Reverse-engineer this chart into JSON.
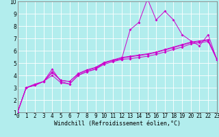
{
  "xlabel": "Windchill (Refroidissement éolien,°C)",
  "xlim": [
    0,
    23
  ],
  "ylim": [
    1,
    10
  ],
  "xticks": [
    0,
    1,
    2,
    3,
    4,
    5,
    6,
    7,
    8,
    9,
    10,
    11,
    12,
    13,
    14,
    15,
    16,
    17,
    18,
    19,
    20,
    21,
    22,
    23
  ],
  "yticks": [
    1,
    2,
    3,
    4,
    5,
    6,
    7,
    8,
    9,
    10
  ],
  "background_color": "#b2eded",
  "grid_color": "#ffffff",
  "series_main": [
    1.0,
    3.0,
    3.3,
    3.5,
    4.5,
    3.5,
    3.3,
    4.0,
    4.3,
    4.5,
    5.0,
    5.2,
    5.3,
    7.7,
    8.3,
    10.2,
    8.5,
    9.2,
    8.5,
    7.3,
    6.8,
    6.4,
    7.3,
    5.3
  ],
  "series_smooth1": [
    1.0,
    3.0,
    3.2,
    3.5,
    4.2,
    3.6,
    3.5,
    4.1,
    4.4,
    4.6,
    5.0,
    5.2,
    5.4,
    5.5,
    5.6,
    5.7,
    5.85,
    6.05,
    6.25,
    6.45,
    6.65,
    6.75,
    6.85,
    5.3
  ],
  "series_smooth2": [
    1.0,
    3.0,
    3.2,
    3.5,
    4.3,
    3.6,
    3.5,
    4.15,
    4.45,
    4.65,
    5.05,
    5.25,
    5.45,
    5.55,
    5.65,
    5.75,
    5.9,
    6.1,
    6.3,
    6.5,
    6.7,
    6.8,
    6.9,
    5.3
  ],
  "series_smooth3": [
    1.0,
    3.0,
    3.2,
    3.5,
    4.0,
    3.4,
    3.3,
    4.0,
    4.3,
    4.5,
    4.9,
    5.1,
    5.3,
    5.35,
    5.45,
    5.55,
    5.7,
    5.9,
    6.1,
    6.3,
    6.55,
    6.65,
    6.75,
    5.3
  ],
  "line_color": "#cc00cc",
  "font_size_label": 6,
  "font_size_tick": 5.5,
  "marker": "D",
  "marker_size": 2.0,
  "linewidth": 0.7
}
